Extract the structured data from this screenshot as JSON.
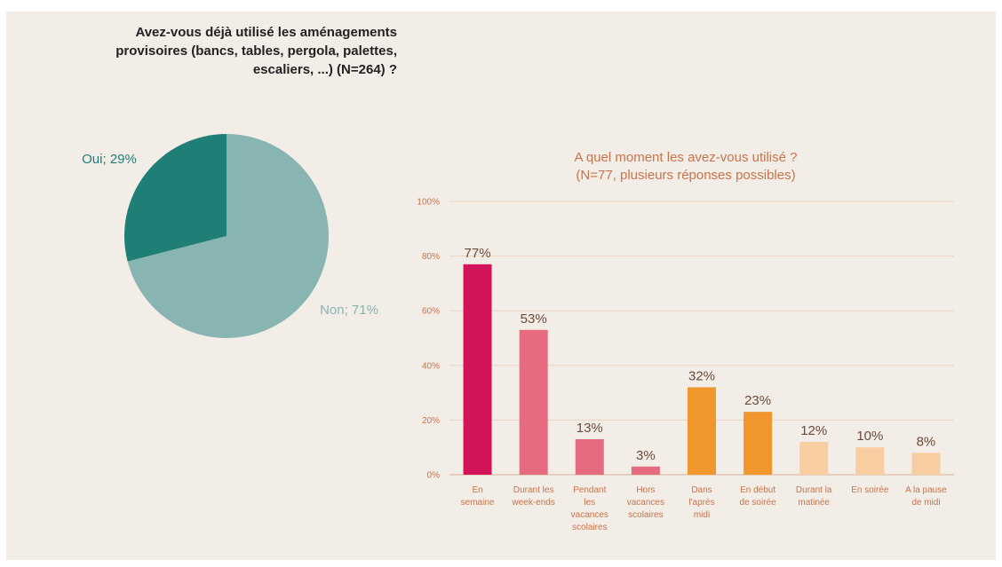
{
  "pie_chart": {
    "title": "Avez-vous déjà utilisé les aménagements provisoires (bancs, tables, pergola, palettes, escaliers, ...) (N=264) ?",
    "title_lines": [
      "Avez-vous déjà utilisé les aménagements",
      "provisoires (bancs, tables, pergola, palettes,",
      "escaliers, ...) (N=264) ?"
    ]
  },
  "bar_chart": {
    "title_lines": [
      "A quel moment les avez-vous utilisé ?",
      "(N=77, plusieurs réponses possibles)"
    ]
  },
  "chart_data": [
    {
      "type": "pie",
      "title": "Avez-vous déjà utilisé les aménagements provisoires (bancs, tables, pergola, palettes, escaliers, ...) (N=264) ?",
      "slices": [
        {
          "label": "Oui; 29%",
          "name": "Oui",
          "value": 29,
          "color": "#1f7f77",
          "label_color": "#1f7f77"
        },
        {
          "label": "Non; 71%",
          "name": "Non",
          "value": 71,
          "color": "#88b4b1",
          "label_color": "#88b4b1"
        }
      ]
    },
    {
      "type": "bar",
      "title": "A quel moment les avez-vous utilisé ? (N=77, plusieurs réponses possibles)",
      "categories": [
        [
          "En",
          "semaine"
        ],
        [
          "Durant les",
          "week-ends"
        ],
        [
          "Pendant",
          "les",
          "vacances",
          "scolaires"
        ],
        [
          "Hors",
          "vacances",
          "scolaires"
        ],
        [
          "Dans",
          "l'après",
          "midi"
        ],
        [
          "En début",
          "de soirée"
        ],
        [
          "Durant la",
          "matinée"
        ],
        [
          "En soirée"
        ],
        [
          "A la pause",
          "de midi"
        ]
      ],
      "values": [
        77,
        53,
        13,
        3,
        32,
        23,
        12,
        10,
        8
      ],
      "data_labels": [
        "77%",
        "53%",
        "13%",
        "3%",
        "32%",
        "23%",
        "12%",
        "10%",
        "8%"
      ],
      "colors": [
        "#d4145a",
        "#e66b7e",
        "#e66b7e",
        "#e66b7e",
        "#f0962c",
        "#f0962c",
        "#f7cda1",
        "#f7cda1",
        "#f7cda1"
      ],
      "ylim": [
        0,
        100
      ],
      "yticks": [
        "0%",
        "20%",
        "40%",
        "60%",
        "80%",
        "100%"
      ],
      "grid": true
    }
  ]
}
